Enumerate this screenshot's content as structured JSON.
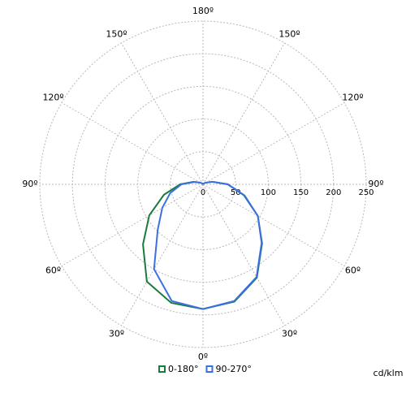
{
  "chart_data": {
    "type": "polar-line",
    "unit_label": "cd/klm",
    "ylim": [
      0,
      250
    ],
    "yticks": [
      0,
      50,
      100,
      150,
      200,
      250
    ],
    "angle_ticks": [
      {
        "value": 0,
        "label": "0º"
      },
      {
        "value": 30,
        "label": "30º"
      },
      {
        "value": 60,
        "label": "60º"
      },
      {
        "value": 90,
        "label": "90º"
      },
      {
        "value": 120,
        "label": "120º"
      },
      {
        "value": 150,
        "label": "150º"
      },
      {
        "value": 180,
        "label": "180º"
      },
      {
        "value": -30,
        "label": "30º"
      },
      {
        "value": -60,
        "label": "60º"
      },
      {
        "value": -90,
        "label": "90º"
      },
      {
        "value": -120,
        "label": "120º"
      },
      {
        "value": -150,
        "label": "150º"
      }
    ],
    "grid": true,
    "x": [
      -180,
      -165,
      -150,
      -135,
      -120,
      -105,
      -90,
      -75,
      -60,
      -45,
      -30,
      -15,
      0,
      15,
      30,
      45,
      60,
      75,
      90,
      105,
      120,
      135,
      150,
      165,
      180
    ],
    "series": [
      {
        "name": "0-180°",
        "color": "#1b7a3e",
        "values": [
          0,
          0,
          1,
          2,
          5,
          15,
          35,
          62,
          95,
          130,
          172,
          188,
          191,
          186,
          165,
          128,
          97,
          65,
          38,
          15,
          5,
          2,
          1,
          0,
          0
        ]
      },
      {
        "name": "90-270°",
        "color": "#3b70e3",
        "values": [
          0,
          0,
          1,
          2,
          5,
          14,
          33,
          52,
          72,
          98,
          150,
          185,
          191,
          185,
          164,
          127,
          97,
          66,
          38,
          15,
          5,
          2,
          1,
          0,
          0
        ]
      }
    ]
  }
}
